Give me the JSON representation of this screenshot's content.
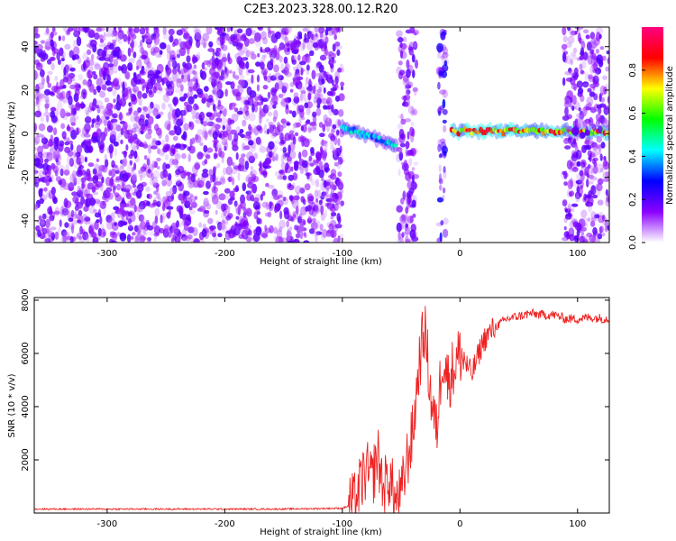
{
  "title": "C2E3.2023.328.00.12.R20",
  "chart_data": [
    {
      "type": "heatmap",
      "title": "C2E3.2023.328.00.12.R20",
      "xlabel": "Height of straight line (km)",
      "ylabel": "Frequency (Hz)",
      "xlim": [
        -362,
        127
      ],
      "ylim": [
        -50,
        49
      ],
      "x_ticks": [
        -300,
        -200,
        -100,
        0,
        100
      ],
      "y_ticks": [
        -40,
        -20,
        0,
        20,
        40
      ],
      "colorbar": {
        "label": "Normalized spectral amplitude",
        "range": [
          0,
          1
        ],
        "ticks": [
          "0.0",
          "0.2",
          "0.4",
          "0.6",
          "0.8"
        ],
        "colors": [
          "#ffffff",
          "#8a00ff",
          "#0000ff",
          "#00ffff",
          "#00ff00",
          "#ffff00",
          "#ff0000",
          "#ff0080"
        ]
      },
      "regions": [
        {
          "x_range": [
            -362,
            -100
          ],
          "kind": "noise",
          "level": 0.1
        },
        {
          "x_range": [
            -100,
            -55
          ],
          "kind": "signal",
          "freq_start": 3,
          "freq_end": -5,
          "level": 0.4
        },
        {
          "x_range": [
            -52,
            -37
          ],
          "kind": "noise",
          "level": 0.1
        },
        {
          "x_range": [
            -18,
            -12
          ],
          "kind": "noise",
          "level": 0.15
        },
        {
          "x_range": [
            -7,
            127
          ],
          "kind": "signal",
          "freq_start": 1,
          "freq_end": 1,
          "level": 0.75
        },
        {
          "x_range": [
            88,
            127
          ],
          "kind": "noise",
          "level": 0.1
        }
      ]
    },
    {
      "type": "line",
      "xlabel": "Height of straight line (km)",
      "ylabel": "SNR (10 * v/v)",
      "xlim": [
        -362,
        127
      ],
      "ylim": [
        0,
        8100
      ],
      "x_ticks": [
        -300,
        -200,
        -100,
        0,
        100
      ],
      "y_ticks": [
        2000,
        4000,
        6000,
        8000
      ],
      "color": "#ee2222",
      "points": [
        [
          -362,
          150
        ],
        [
          -300,
          150
        ],
        [
          -250,
          150
        ],
        [
          -200,
          150
        ],
        [
          -150,
          150
        ],
        [
          -100,
          180
        ],
        [
          -90,
          350
        ],
        [
          -80,
          1600
        ],
        [
          -75,
          1200
        ],
        [
          -70,
          2200
        ],
        [
          -65,
          900
        ],
        [
          -60,
          1400
        ],
        [
          -55,
          400
        ],
        [
          -50,
          600
        ],
        [
          -45,
          2000
        ],
        [
          -40,
          3000
        ],
        [
          -35,
          5500
        ],
        [
          -30,
          7000
        ],
        [
          -25,
          4500
        ],
        [
          -20,
          3000
        ],
        [
          -15,
          6000
        ],
        [
          -10,
          5000
        ],
        [
          -5,
          5500
        ],
        [
          0,
          6000
        ],
        [
          10,
          5200
        ],
        [
          20,
          6500
        ],
        [
          30,
          7000
        ],
        [
          40,
          7300
        ],
        [
          50,
          7400
        ],
        [
          60,
          7500
        ],
        [
          70,
          7450
        ],
        [
          80,
          7450
        ],
        [
          90,
          7300
        ],
        [
          100,
          7300
        ],
        [
          110,
          7350
        ],
        [
          127,
          7300
        ]
      ]
    }
  ]
}
